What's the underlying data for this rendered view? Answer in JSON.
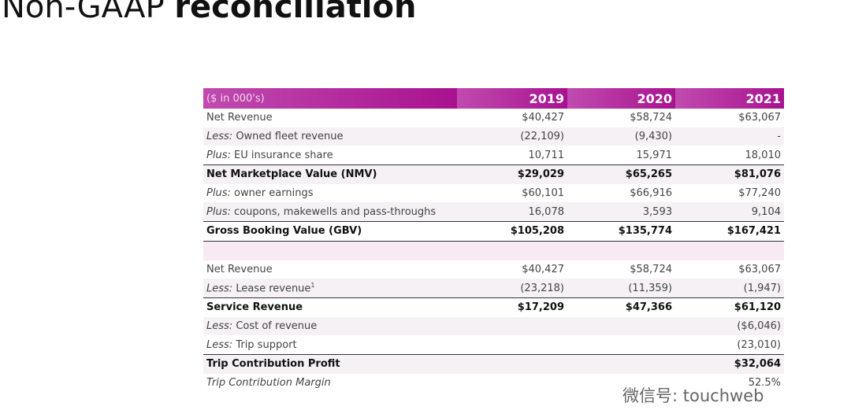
{
  "header": {
    "title_light": "Non-GAAP",
    "title_bold": "reconciliation"
  },
  "table": {
    "columns": [
      "($ in 000's)",
      "2019",
      "2020",
      "2021"
    ],
    "rows": [
      {
        "label": "Net Revenue",
        "values": [
          "$40,427",
          "$58,724",
          "$63,067"
        ]
      },
      {
        "prefix": "Less:",
        "label": "Owned fleet revenue",
        "values": [
          "(22,109)",
          "(9,430)",
          "-"
        ]
      },
      {
        "prefix": "Plus:",
        "label": "EU insurance share",
        "values": [
          "10,711",
          "15,971",
          "18,010"
        ]
      },
      {
        "label": "Net Marketplace Value (NMV)",
        "values": [
          "$29,029",
          "$65,265",
          "$81,076"
        ]
      },
      {
        "prefix": "Plus:",
        "label": "owner earnings",
        "values": [
          "$60,101",
          "$66,916",
          "$77,240"
        ]
      },
      {
        "prefix": "Plus:",
        "label": "coupons, makewells and pass-throughs",
        "values": [
          "16,078",
          "3,593",
          "9,104"
        ]
      },
      {
        "label": "Gross Booking Value (GBV)",
        "values": [
          "$105,208",
          "$135,774",
          "$167,421"
        ]
      },
      {
        "label": "Net Revenue",
        "values": [
          "$40,427",
          "$58,724",
          "$63,067"
        ]
      },
      {
        "prefix": "Less:",
        "label": "Lease revenue",
        "footnote": "1",
        "values": [
          "(23,218)",
          "(11,359)",
          "(1,947)"
        ]
      },
      {
        "label": "Service Revenue",
        "values": [
          "$17,209",
          "$47,366",
          "$61,120"
        ]
      },
      {
        "prefix": "Less:",
        "label": "Cost of revenue",
        "values": [
          null,
          null,
          "($6,046)"
        ]
      },
      {
        "prefix": "Less:",
        "label": "Trip support",
        "values": [
          null,
          null,
          "(23,010)"
        ]
      },
      {
        "label": "Trip Contribution Profit",
        "values": [
          null,
          null,
          "$32,064"
        ]
      },
      {
        "label": "Trip Contribution Margin",
        "values": [
          null,
          null,
          "52.5%"
        ]
      }
    ]
  },
  "watermark": "微信号: touchweb"
}
